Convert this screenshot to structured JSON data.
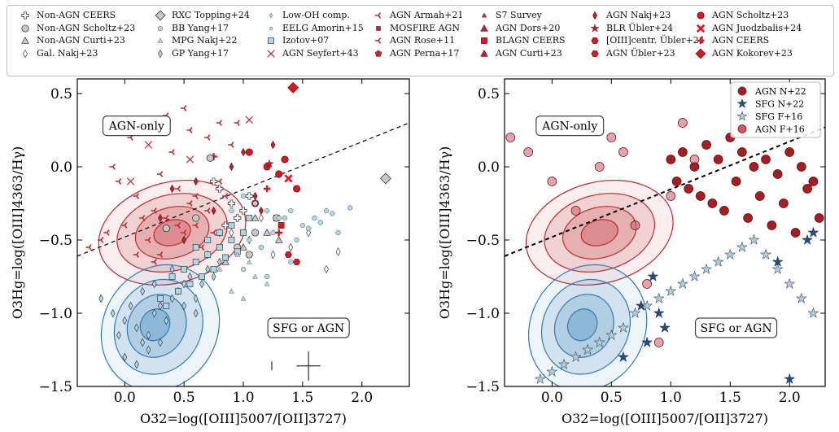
{
  "legend": {
    "entries": [
      {
        "label": "Non-AGN CEERS",
        "marker": "plus-outline",
        "color": "#ffffff"
      },
      {
        "label": "Non-AGN Scholtz+23",
        "marker": "circle",
        "color": "#c8c8c8"
      },
      {
        "label": "Non-AGN Curti+23",
        "marker": "triangle",
        "color": "#c8c8c8"
      },
      {
        "label": "Gal. Nakj+23",
        "marker": "thin-diamond",
        "color": "#ffffff"
      },
      {
        "label": "RXC Topping+24",
        "marker": "diamond-big",
        "color": "#c8c8c8"
      },
      {
        "label": "BB Yang+17",
        "marker": "small-circle",
        "color": "#add8e6"
      },
      {
        "label": "MPG Nakj+22",
        "marker": "small-triangle",
        "color": "#add8e6"
      },
      {
        "label": "GP Yang+17",
        "marker": "thin-diamond",
        "color": "#add8e6"
      },
      {
        "label": "Low-OH comp.",
        "marker": "tiny-diamond",
        "color": "#add8e6"
      },
      {
        "label": "EELG Amorin+15",
        "marker": "tiny-circle",
        "color": "#add8e6"
      },
      {
        "label": "Izotov+07",
        "marker": "square",
        "color": "#add8e6"
      },
      {
        "label": "AGN Seyfert+43",
        "marker": "x",
        "color": "#c0282d"
      },
      {
        "label": "AGN Armah+21",
        "marker": "tri-left",
        "color": "#c0282d"
      },
      {
        "label": "MOSFIRE AGN",
        "marker": "small-square",
        "color": "#c0282d"
      },
      {
        "label": "AGN Rose+11",
        "marker": "tri-left",
        "color": "#c0282d"
      },
      {
        "label": "AGN Perna+17",
        "marker": "pentagon",
        "color": "#c0282d"
      },
      {
        "label": "S7 Survey",
        "marker": "small-triangle",
        "color": "#c0282d"
      },
      {
        "label": "AGN Dors+20",
        "marker": "triangle",
        "color": "#c0282d"
      },
      {
        "label": "BLAGN CEERS",
        "marker": "square",
        "color": "#e8101a"
      },
      {
        "label": "AGN Curti+23",
        "marker": "triangle",
        "color": "#e8101a"
      },
      {
        "label": "AGN Nakj+23",
        "marker": "thin-diamond",
        "color": "#e8101a"
      },
      {
        "label": "BLR Übler+24",
        "marker": "star",
        "color": "#e8101a"
      },
      {
        "label": "[OIII]centr. Übler+24",
        "marker": "hexagon",
        "color": "#e8101a"
      },
      {
        "label": "AGN Übler+23",
        "marker": "hexagon",
        "color": "#e8101a"
      },
      {
        "label": "AGN Scholtz+23",
        "marker": "circle",
        "color": "#e8101a"
      },
      {
        "label": "AGN Juodzbalis+24",
        "marker": "x-thick",
        "color": "#e8101a"
      },
      {
        "label": "AGN CEERS",
        "marker": "plus",
        "color": "#e8101a"
      },
      {
        "label": "AGN Kokorev+23",
        "marker": "diamond-big",
        "color": "#e8101a"
      }
    ]
  },
  "chart_data": [
    {
      "type": "scatter",
      "panel": "left",
      "xlabel": "O32=log([OIII]5007/[OII]3727)",
      "ylabel": "O3Hg=log([OIII]4363/Hγ)",
      "xlim": [
        -0.4,
        2.4
      ],
      "ylim": [
        -1.5,
        0.6
      ],
      "xticks": [
        0.0,
        0.5,
        1.0,
        1.5,
        2.0
      ],
      "xtick_labels": [
        "0.0",
        "0.5",
        "1.0",
        "1.5",
        "2.0"
      ],
      "yticks": [
        -1.5,
        -1.0,
        -0.5,
        0.0,
        0.5
      ],
      "ytick_labels": [
        "−1.5",
        "−1.0",
        "−0.5",
        "0.0",
        "0.5"
      ],
      "annotations": [
        {
          "text": "AGN-only",
          "x": 0.1,
          "y": 0.28
        },
        {
          "text": "SFG or AGN",
          "x": 1.55,
          "y": -1.1
        }
      ],
      "demarcation_line": {
        "x": [
          -0.4,
          2.4
        ],
        "y": [
          -0.61,
          0.3
        ]
      },
      "error_bars": [
        {
          "x": 1.24,
          "y": -1.36,
          "xerr": 0.0,
          "yerr": 0.03
        },
        {
          "x": 1.55,
          "y": -1.36,
          "xerr": 0.1,
          "yerr": 0.1
        }
      ],
      "series": [
        {
          "name": "AGN Armah+21",
          "marker": "tri-left",
          "color": "#c0282d",
          "x": [
            -0.05,
            0.1,
            0.25,
            0.35,
            0.45,
            0.55,
            0.6,
            0.7,
            0.75,
            0.85,
            0.2,
            0.3,
            0.5,
            0.65,
            0.8,
            0.05,
            0.4,
            0.15,
            -0.1,
            0.55,
            0.7,
            0.9,
            0.45,
            0.3,
            -0.2,
            0.6,
            0.25,
            0.8,
            0.35,
            0.1
          ],
          "y": [
            -0.1,
            -0.2,
            -0.3,
            -0.35,
            -0.4,
            -0.25,
            -0.2,
            -0.3,
            -0.45,
            -0.2,
            -0.5,
            -0.6,
            -0.45,
            -0.55,
            0.3,
            0.2,
            0.1,
            -0.35,
            0.0,
            0.25,
            0.2,
            0.15,
            -0.15,
            -0.05,
            -0.5,
            -0.4,
            -0.65,
            -0.1,
            0.35,
            -0.6
          ]
        },
        {
          "name": "AGN Rose+11",
          "marker": "tri-left",
          "color": "#c0282d",
          "x": [
            -0.3,
            0.0,
            0.5,
            0.95,
            -0.15
          ],
          "y": [
            -0.55,
            -0.4,
            0.4,
            0.3,
            -0.45
          ]
        },
        {
          "name": "AGN Seyfert+43",
          "marker": "x",
          "color": "#c0282d",
          "x": [
            0.05,
            0.55,
            1.05,
            0.2
          ],
          "y": [
            -0.1,
            0.05,
            0.32,
            0.15
          ]
        },
        {
          "name": "AGN Nakj+23",
          "marker": "thin-diamond",
          "color": "#e8101a",
          "x": [
            0.3,
            0.6,
            0.75,
            0.9,
            1.1,
            1.25,
            0.5,
            0.8,
            1.0,
            0.4,
            1.3,
            1.15
          ],
          "y": [
            -0.35,
            -0.1,
            -0.3,
            0.0,
            -0.2,
            0.15,
            -0.5,
            -0.45,
            0.1,
            -0.15,
            -0.05,
            -0.3
          ]
        },
        {
          "name": "AGN Scholtz+23",
          "marker": "circle",
          "color": "#e8101a",
          "x": [
            1.05,
            1.2,
            1.3,
            1.45,
            1.35,
            1.1
          ],
          "y": [
            0.1,
            0.0,
            -0.05,
            -0.15,
            0.05,
            -0.25
          ]
        },
        {
          "name": "BLR Übler+24",
          "marker": "star",
          "color": "#e8101a",
          "x": [
            1.22
          ],
          "y": [
            0.02
          ]
        },
        {
          "name": "AGN Juodzbalis+24",
          "marker": "x-thick",
          "color": "#e8101a",
          "x": [
            1.38
          ],
          "y": [
            -0.08
          ]
        },
        {
          "name": "AGN CEERS",
          "marker": "plus",
          "color": "#e8101a",
          "x": [
            1.2,
            0.75,
            1.3
          ],
          "y": [
            -0.15,
            0.07,
            -0.45
          ]
        },
        {
          "name": "AGN Kokorev+23",
          "marker": "diamond-big",
          "color": "#e8101a",
          "x": [
            1.42
          ],
          "y": [
            0.54
          ]
        },
        {
          "name": "BLAGN CEERS",
          "marker": "square",
          "color": "#e8101a",
          "x": [
            1.28,
            1.32
          ],
          "y": [
            -0.35,
            -0.4
          ]
        },
        {
          "name": "AGN Übler+23",
          "marker": "hexagon",
          "color": "#e8101a",
          "x": [
            1.45,
            1.38
          ],
          "y": [
            -0.65,
            -0.6
          ]
        },
        {
          "name": "Non-AGN CEERS",
          "marker": "plus-outline",
          "color": "#ffffff",
          "x": [
            0.75,
            0.8,
            0.9,
            1.0,
            0.85,
            0.95,
            1.05
          ],
          "y": [
            -0.1,
            -0.15,
            -0.25,
            -0.3,
            -0.4,
            -0.35,
            -0.2
          ]
        },
        {
          "name": "Non-AGN Scholtz+23",
          "marker": "circle",
          "color": "#c8c8c8",
          "x": [
            0.35,
            0.6,
            0.72,
            0.95,
            1.1,
            1.28,
            1.05
          ],
          "y": [
            -0.42,
            -0.35,
            0.06,
            -0.55,
            -0.45,
            -0.35,
            -0.6
          ]
        },
        {
          "name": "Non-AGN Curti+23",
          "marker": "triangle",
          "color": "#c8c8c8",
          "x": [
            0.85,
            1.0,
            1.3,
            1.1,
            1.2
          ],
          "y": [
            -0.65,
            -0.55,
            -0.5,
            -0.35,
            -0.45
          ]
        },
        {
          "name": "RXC Topping+24",
          "marker": "diamond-big",
          "color": "#c8c8c8",
          "x": [
            2.2
          ],
          "y": [
            -0.08
          ]
        },
        {
          "name": "Gal. Nakj+23",
          "marker": "thin-diamond",
          "color": "#ffffff",
          "x": [
            0.9,
            1.05,
            1.15,
            1.25,
            1.4,
            1.55,
            1.8,
            1.7
          ],
          "y": [
            -0.45,
            -0.5,
            -0.35,
            -0.6,
            -0.55,
            -0.45,
            -0.58,
            -0.7
          ]
        },
        {
          "name": "BB Yang+17",
          "marker": "small-circle",
          "color": "#add8e6",
          "x": [
            0.9,
            1.0,
            1.1,
            1.2,
            1.3,
            1.4,
            1.5,
            1.6,
            1.7,
            1.8,
            1.05,
            1.15,
            1.25,
            1.35,
            1.45,
            1.55,
            1.65,
            1.75,
            1.9,
            1.0,
            1.2,
            1.4
          ],
          "y": [
            -0.3,
            -0.2,
            -0.25,
            -0.3,
            -0.35,
            -0.3,
            -0.4,
            -0.35,
            -0.3,
            -0.45,
            -0.5,
            -0.55,
            -0.45,
            -0.35,
            -0.5,
            -0.42,
            -0.38,
            -0.32,
            -0.28,
            -0.7,
            -0.75,
            -0.65
          ]
        },
        {
          "name": "GP Yang+17",
          "marker": "thin-diamond",
          "color": "#add8e6",
          "x": [
            -0.2,
            -0.1,
            0.0,
            0.05,
            0.1,
            0.15,
            0.2,
            0.25,
            0.3,
            0.35,
            0.4,
            0.45,
            0.5,
            0.55,
            0.6,
            0.65,
            0.7,
            0.75,
            0.8,
            0.0,
            0.1,
            0.2,
            0.3,
            -0.05,
            0.15,
            0.25,
            0.4,
            0.5,
            0.6,
            0.7
          ],
          "y": [
            -0.9,
            -1.0,
            -1.05,
            -0.95,
            -1.1,
            -1.2,
            -1.15,
            -1.0,
            -0.95,
            -1.05,
            -0.9,
            -0.85,
            -0.8,
            -0.75,
            -0.9,
            -0.8,
            -0.7,
            -0.75,
            -0.65,
            -1.3,
            -1.35,
            -1.25,
            -1.2,
            -1.15,
            -0.85,
            -0.8,
            -0.7,
            -0.95,
            -1.0,
            -0.6
          ]
        },
        {
          "name": "Izotov+07",
          "marker": "square",
          "color": "#add8e6",
          "x": [
            0.4,
            0.5,
            0.6,
            0.7,
            0.8,
            0.9,
            1.0,
            0.55,
            0.65,
            0.75,
            0.85,
            0.95,
            0.45,
            0.35,
            0.3,
            0.6,
            0.7,
            0.8,
            0.9,
            1.05
          ],
          "y": [
            -0.75,
            -0.7,
            -0.65,
            -0.6,
            -0.55,
            -0.5,
            -0.45,
            -0.8,
            -0.75,
            -0.7,
            -0.62,
            -0.58,
            -0.85,
            -0.95,
            -0.9,
            -0.55,
            -0.5,
            -0.45,
            -0.4,
            -0.35
          ]
        },
        {
          "name": "MPG Nakj+22",
          "marker": "small-triangle",
          "color": "#add8e6",
          "x": [
            0.8,
            0.9,
            1.0,
            1.1,
            1.2,
            0.95,
            1.05
          ],
          "y": [
            -0.7,
            -0.85,
            -0.9,
            -0.75,
            -0.8,
            -0.6,
            -0.65
          ]
        }
      ],
      "contours": [
        {
          "name": "AGN density",
          "color": "#c0282d",
          "center": [
            0.4,
            -0.45
          ],
          "levels": 4
        },
        {
          "name": "SFG density",
          "color": "#2c7bb6",
          "center": [
            0.3,
            -1.1
          ],
          "levels": 4
        }
      ]
    },
    {
      "type": "scatter",
      "panel": "right",
      "xlabel": "O32=log([OIII]5007/[OII]3727)",
      "ylabel": "O3Hg=log([OIII]4363/Hγ)",
      "xlim": [
        -0.4,
        2.3
      ],
      "ylim": [
        -1.5,
        0.6
      ],
      "xticks": [
        0.0,
        0.5,
        1.0,
        1.5,
        2.0
      ],
      "xtick_labels": [
        "0.0",
        "0.5",
        "1.0",
        "1.5",
        "2.0"
      ],
      "yticks": [
        -1.5,
        -1.0,
        -0.5,
        0.0,
        0.5
      ],
      "ytick_labels": [
        "−1.5",
        "−1.0",
        "−0.5",
        "0.0",
        "0.5"
      ],
      "annotations": [
        {
          "text": "AGN-only",
          "x": 0.15,
          "y": 0.28
        },
        {
          "text": "SFG or AGN",
          "x": 1.55,
          "y": -1.1
        }
      ],
      "legend_position": "top-right",
      "demarcation_line": {
        "x": [
          -0.4,
          2.3
        ],
        "y": [
          -0.61,
          0.27
        ]
      },
      "series": [
        {
          "name": "AGN N+22",
          "marker": "circle",
          "color": "#b01a1f",
          "x": [
            1.0,
            1.1,
            1.2,
            1.3,
            1.4,
            1.5,
            1.6,
            1.7,
            1.8,
            1.9,
            2.0,
            2.1,
            2.2,
            1.55,
            1.75,
            1.95,
            2.15,
            1.25,
            1.45,
            1.65,
            1.85,
            2.05,
            2.25,
            1.05,
            1.15,
            1.35
          ],
          "y": [
            0.05,
            0.1,
            0.0,
            0.15,
            0.05,
            0.2,
            0.1,
            0.0,
            0.05,
            -0.05,
            0.1,
            0.0,
            -0.1,
            -0.1,
            -0.2,
            -0.25,
            -0.15,
            -0.2,
            -0.3,
            -0.35,
            -0.4,
            -0.45,
            -0.35,
            -0.1,
            -0.15,
            -0.25
          ]
        },
        {
          "name": "SFG N+22",
          "marker": "star",
          "color": "#1f4e8a",
          "x": [
            0.75,
            0.85,
            0.9,
            0.95,
            0.8,
            0.6,
            2.0,
            2.15,
            2.2,
            1.9
          ],
          "y": [
            -0.95,
            -0.75,
            -1.0,
            -1.1,
            -1.2,
            -1.3,
            -1.45,
            -0.5,
            -0.45,
            -0.65
          ]
        },
        {
          "name": "SFG F+16",
          "marker": "star",
          "color": "#a9cfe0",
          "x": [
            -0.1,
            0.0,
            0.1,
            0.2,
            0.3,
            0.4,
            0.5,
            0.6,
            0.7,
            0.8,
            0.9,
            1.0,
            1.1,
            1.2,
            1.3,
            1.4,
            1.5,
            1.6,
            1.7,
            1.8,
            1.9,
            2.0,
            2.1,
            2.2
          ],
          "y": [
            -1.45,
            -1.4,
            -1.35,
            -1.3,
            -1.25,
            -1.2,
            -1.15,
            -1.1,
            -1.0,
            -0.95,
            -0.9,
            -0.85,
            -0.8,
            -0.75,
            -0.7,
            -0.65,
            -0.6,
            -0.55,
            -0.5,
            -0.6,
            -0.7,
            -0.8,
            -0.9,
            -1.0
          ]
        },
        {
          "name": "AGN F+16",
          "marker": "circle",
          "color": "#e6505a",
          "x": [
            -0.35,
            -0.2,
            0.0,
            0.2,
            0.4,
            0.5,
            0.6,
            0.7,
            0.8,
            0.9,
            1.0,
            1.1,
            1.2
          ],
          "y": [
            0.2,
            0.1,
            -0.1,
            -0.3,
            0.0,
            0.2,
            0.1,
            -0.4,
            -0.8,
            -1.2,
            -0.2,
            0.3,
            0.05
          ]
        }
      ],
      "contours": [
        {
          "name": "AGN density",
          "color": "#c0282d",
          "center": [
            0.4,
            -0.45
          ],
          "levels": 4
        },
        {
          "name": "SFG density",
          "color": "#2c7bb6",
          "center": [
            0.3,
            -1.1
          ],
          "levels": 4
        }
      ]
    }
  ]
}
